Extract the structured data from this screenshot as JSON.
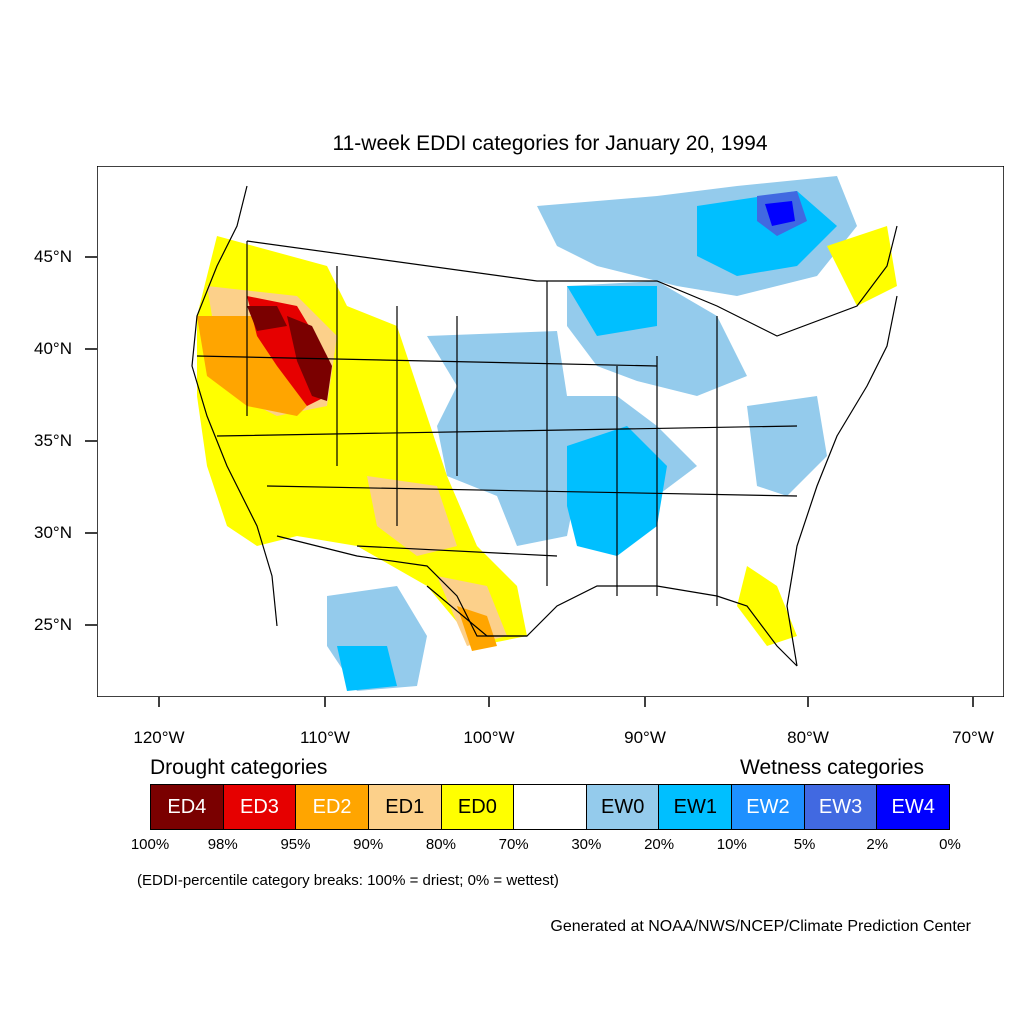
{
  "title": "11-week EDDI categories for January 20, 1994",
  "map": {
    "lat_labels": [
      "45°N",
      "40°N",
      "35°N",
      "30°N",
      "25°N"
    ],
    "lon_labels": [
      "120°W",
      "110°W",
      "100°W",
      "90°W",
      "80°W",
      "70°W"
    ],
    "background_color": "#ffffff",
    "boundary_color": "#000000"
  },
  "legend": {
    "drought_heading": "Drought categories",
    "wetness_heading": "Wetness categories",
    "categories": [
      {
        "label": "ED4",
        "color": "#7a0000",
        "text_color": "#ffffff"
      },
      {
        "label": "ED3",
        "color": "#e60000",
        "text_color": "#ffffff"
      },
      {
        "label": "ED2",
        "color": "#ffa500",
        "text_color": "#ffffff"
      },
      {
        "label": "ED1",
        "color": "#fcd08a",
        "text_color": "#000000"
      },
      {
        "label": "ED0",
        "color": "#ffff00",
        "text_color": "#000000"
      },
      {
        "label": "",
        "color": "#ffffff",
        "text_color": "#000000"
      },
      {
        "label": "EW0",
        "color": "#94cbec",
        "text_color": "#000000"
      },
      {
        "label": "EW1",
        "color": "#00bfff",
        "text_color": "#000000"
      },
      {
        "label": "EW2",
        "color": "#1e90ff",
        "text_color": "#ffffff"
      },
      {
        "label": "EW3",
        "color": "#4169e1",
        "text_color": "#ffffff"
      },
      {
        "label": "EW4",
        "color": "#0000ff",
        "text_color": "#ffffff"
      }
    ],
    "breaks": [
      "100%",
      "98%",
      "95%",
      "90%",
      "80%",
      "70%",
      "30%",
      "20%",
      "10%",
      "5%",
      "2%",
      "0%"
    ]
  },
  "note": "(EDDI-percentile category breaks: 100% = driest; 0% = wettest)",
  "credit": "Generated at NOAA/NWS/NCEP/Climate Prediction Center"
}
